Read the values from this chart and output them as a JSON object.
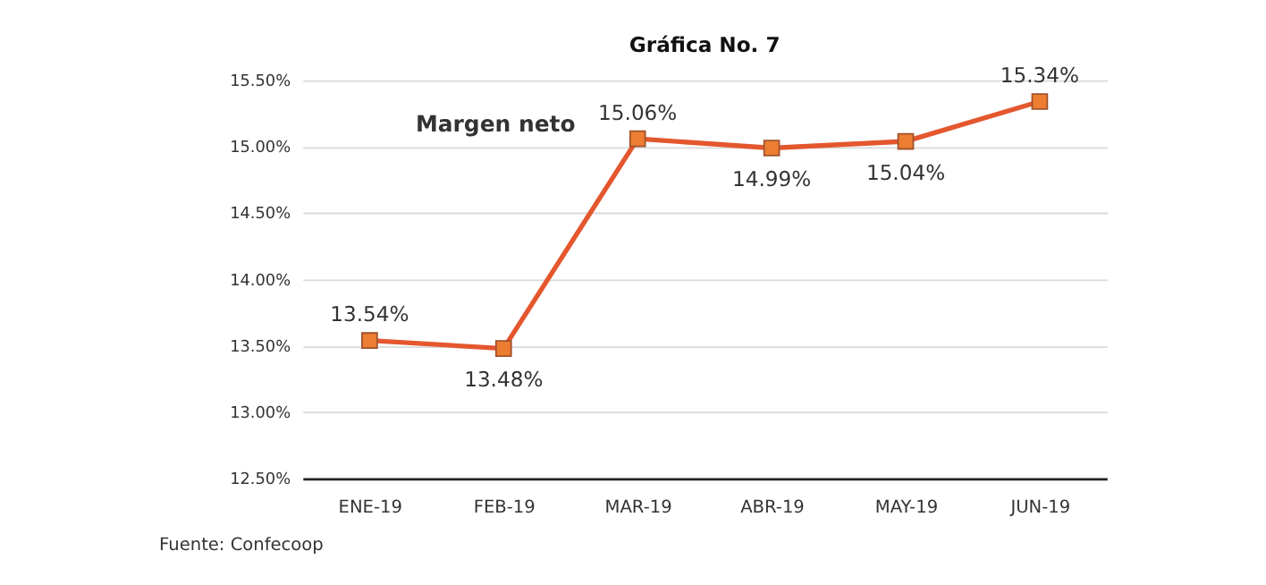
{
  "chart_data": {
    "type": "line",
    "title": "Gráfica No. 7",
    "categories": [
      "ENE-19",
      "FEB-19",
      "MAR-19",
      "ABR-19",
      "MAY-19",
      "JUN-19"
    ],
    "series": [
      {
        "color": "#e4572e",
        "values": [
          13.54,
          13.48,
          15.06,
          14.99,
          15.04,
          15.34
        ],
        "value_labels": [
          "13.54%",
          "13.48%",
          "15.06%",
          "14.99%",
          "15.04%",
          "15.34%"
        ]
      }
    ],
    "ylim": [
      12.5,
      15.5
    ],
    "yticks": [
      {
        "value": 12.5,
        "label": "12.50%"
      },
      {
        "value": 13.0,
        "label": "13.00%"
      },
      {
        "value": 13.5,
        "label": "13.50%"
      },
      {
        "value": 14.0,
        "label": "14.00%"
      },
      {
        "value": 14.5,
        "label": "14.50%"
      },
      {
        "value": 15.0,
        "label": "15.00%"
      },
      {
        "value": 15.5,
        "label": "15.50%"
      }
    ],
    "grid": "y",
    "marker": "square",
    "line_style": "solid",
    "annotations": [
      "Margen neto",
      "Fuente: Confecoop"
    ]
  }
}
